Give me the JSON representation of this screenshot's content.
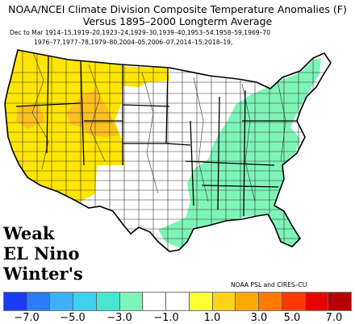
{
  "title_line1": "NOAA/NCEI Climate Division Composite Temperature Anomalies (F)",
  "title_line2": "Versus 1895–2000 Longterm Average",
  "subtitle_line1": "Dec to Mar  1914–15,1919–20,1923–24,1929–30,1939–40,1953–54,1958–59,1969–70",
  "subtitle_line2": "1976–77,1977–78,1979–80,2004–05,2006–07,2014–15,2018–19,",
  "overlay_label": [
    "Weak",
    "EL Nino",
    "Winter's"
  ],
  "credit": "NOAA PSL and CIRES–CU",
  "legend": {
    "colors": [
      "#1a3cf0",
      "#2b7df5",
      "#3fb0fa",
      "#3fd0f0",
      "#46e6d2",
      "#7ef5b8",
      "#ffffff",
      "#ffffff",
      "#ffff3a",
      "#ffd21e",
      "#ffa800",
      "#ff7a00",
      "#ff3a00",
      "#e60000",
      "#b40000"
    ],
    "ticks": [
      "−7.0",
      "−5.0",
      "−3.0",
      "−1.0",
      "1.0",
      "3.0",
      "5.0",
      "7.0"
    ]
  },
  "map_regions": {
    "warm_west": {
      "color": "#ffe600",
      "anomaly_range": [
        1.0,
        3.0
      ]
    },
    "warm_core": {
      "color": "#ffc020",
      "anomaly_range": [
        1.0,
        3.0
      ]
    },
    "cool_southeast": {
      "color": "#7ef5b8",
      "anomaly_range": [
        -3.0,
        -1.0
      ]
    },
    "neutral": {
      "color": "#ffffff",
      "anomaly_range": [
        -1.0,
        1.0
      ]
    }
  }
}
